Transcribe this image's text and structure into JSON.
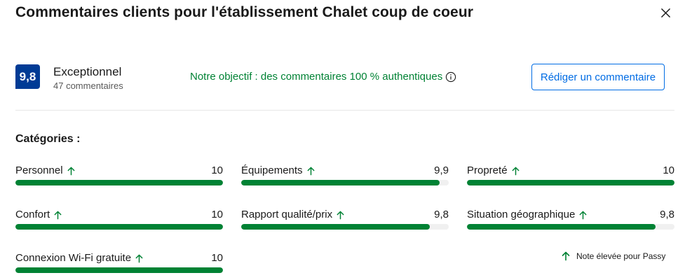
{
  "header": {
    "title": "Commentaires clients pour l'établissement Chalet coup de coeur",
    "close_icon": "close-icon"
  },
  "summary": {
    "score": "9,8",
    "rating_word": "Exceptionnel",
    "review_count": "47 commentaires",
    "objective": "Notre objectif : des commentaires 100 % authentiques",
    "write_button": "Rédiger un commentaire",
    "badge_color": "#003b95"
  },
  "categories": {
    "heading": "Catégories :",
    "items": [
      {
        "label": "Personnel",
        "score": "10",
        "value": 10
      },
      {
        "label": "Équipements",
        "score": "9,9",
        "value": 9.9
      },
      {
        "label": "Propreté",
        "score": "10",
        "value": 10
      },
      {
        "label": "Confort",
        "score": "10",
        "value": 10
      },
      {
        "label": "Rapport qualité/prix",
        "score": "9,8",
        "value": 9.8
      },
      {
        "label": "Situation géographique",
        "score": "9,8",
        "value": 9.8
      },
      {
        "label": "Connexion Wi-Fi gratuite",
        "score": "10",
        "value": 10
      }
    ],
    "max_value": 10,
    "bar_color": "#008234",
    "arrow_icon": "arrow-up-icon"
  },
  "footnote": {
    "text": "Note élevée pour Passy"
  }
}
